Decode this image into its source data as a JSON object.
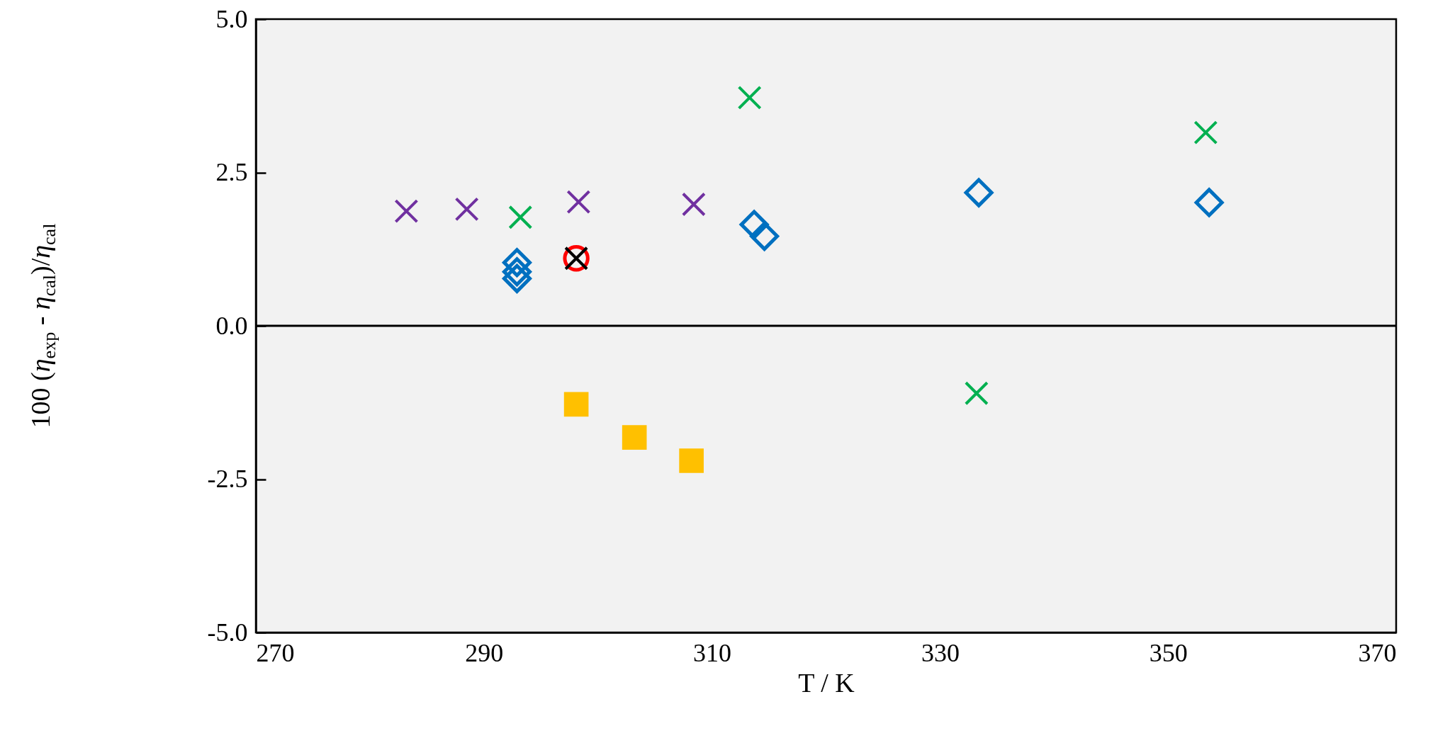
{
  "chart_data": {
    "type": "scatter",
    "xlabel": "T / K",
    "ylabel": "100 (η$_{exp}$ - η$_{cal}$)/η$_{cal}$",
    "xlim": [
      270,
      370
    ],
    "xticks": [
      270,
      290,
      310,
      330,
      350,
      370
    ],
    "ylim": [
      -5,
      5
    ],
    "yticks": [
      {
        "value": -5,
        "label": "-5.0"
      },
      {
        "value": -2.5,
        "label": "-2.5"
      },
      {
        "value": 0,
        "label": "0.0"
      },
      {
        "value": 2.5,
        "label": "2.5"
      },
      {
        "value": 5,
        "label": "5.0"
      }
    ],
    "grid": false,
    "ref_lines": [
      {
        "axis": "y",
        "value": 0,
        "color": "#000000"
      }
    ],
    "series": [
      {
        "color": "#7030a0",
        "marker": "cross",
        "x": [
          283.2,
          288.5,
          298.3,
          308.4
        ],
        "values": [
          1.87,
          1.9,
          2.02,
          1.98
        ]
      },
      {
        "color": "#00b050",
        "marker": "cross",
        "x": [
          293.2,
          313.3,
          333.2,
          353.3
        ],
        "values": [
          1.77,
          3.72,
          -1.1,
          3.15
        ]
      },
      {
        "color": "#0070c0",
        "marker": "diamond",
        "x": [
          292.9,
          292.9,
          292.9,
          313.7,
          314.6,
          333.4,
          353.6
        ],
        "values": [
          1.03,
          0.88,
          0.77,
          1.65,
          1.46,
          2.17,
          2.01
        ]
      },
      {
        "color": "#ff0000",
        "marker": "circle",
        "x": [
          298.1
        ],
        "values": [
          1.1
        ]
      },
      {
        "color": "#000000",
        "marker": "cross",
        "x": [
          298.1
        ],
        "values": [
          1.1
        ]
      },
      {
        "color": "#ffc000",
        "marker": "square",
        "x": [
          298.1,
          303.2,
          308.2
        ],
        "values": [
          -1.28,
          -1.82,
          -2.2
        ]
      }
    ]
  }
}
